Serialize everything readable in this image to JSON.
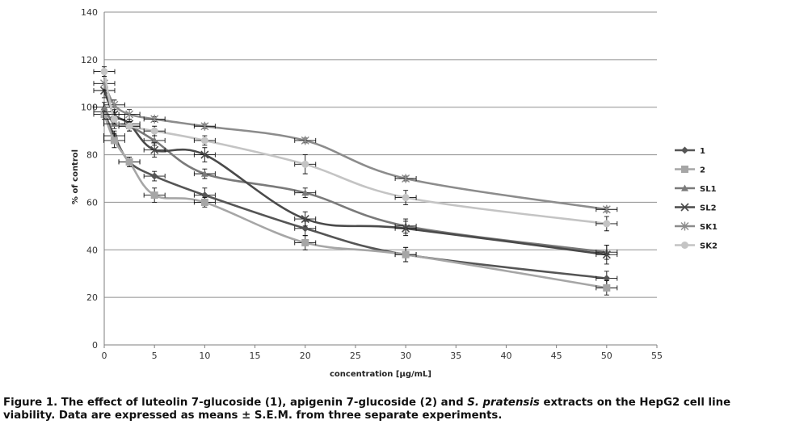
{
  "chart_data": {
    "type": "line",
    "xlabel": "concentration [µg/mL]",
    "ylabel": "% of control",
    "xlim": [
      0,
      55
    ],
    "ylim": [
      0,
      140
    ],
    "xticks": [
      0,
      5,
      10,
      15,
      20,
      25,
      30,
      35,
      40,
      45,
      50,
      55
    ],
    "yticks": [
      0,
      20,
      40,
      60,
      80,
      100,
      120,
      140
    ],
    "grid": "horizontal",
    "legend": "right",
    "series": [
      {
        "name": "1",
        "color": "#555555",
        "marker": "diamond",
        "x": [
          0,
          1,
          2.5,
          5,
          10,
          20,
          30,
          50
        ],
        "y": [
          98,
          88,
          77,
          71,
          63,
          49,
          38,
          28
        ],
        "err": [
          2,
          2,
          2,
          2,
          3,
          3,
          3,
          3
        ]
      },
      {
        "name": "2",
        "color": "#a6a6a6",
        "marker": "square",
        "x": [
          0,
          1,
          2.5,
          5,
          10,
          20,
          30,
          50
        ],
        "y": [
          97,
          86,
          77,
          63,
          60,
          43,
          38,
          24
        ],
        "err": [
          2,
          3,
          2,
          3,
          2,
          3,
          3,
          3
        ]
      },
      {
        "name": "SL1",
        "color": "#7a7a7a",
        "marker": "triangle",
        "x": [
          0,
          1,
          2.5,
          5,
          10,
          20,
          30,
          50
        ],
        "y": [
          100,
          93,
          92,
          86,
          72,
          64,
          50,
          39
        ],
        "err": [
          2,
          2,
          2,
          2,
          2,
          2,
          3,
          3
        ]
      },
      {
        "name": "SL2",
        "color": "#4a4a4a",
        "marker": "x",
        "x": [
          0,
          1,
          2.5,
          5,
          10,
          20,
          30,
          50
        ],
        "y": [
          107,
          97,
          93,
          82,
          80,
          53,
          49,
          38
        ],
        "err": [
          3,
          3,
          2,
          3,
          3,
          3,
          3,
          4
        ]
      },
      {
        "name": "SK1",
        "color": "#8c8c8c",
        "marker": "asterisk",
        "x": [
          0,
          1,
          2.5,
          5,
          10,
          20,
          30,
          50
        ],
        "y": [
          110,
          101,
          97,
          95,
          92,
          86,
          70,
          57
        ],
        "err": [
          3,
          2,
          2,
          1,
          1,
          1,
          1,
          1
        ]
      },
      {
        "name": "SK2",
        "color": "#c4c4c4",
        "marker": "circle",
        "x": [
          0,
          1,
          2.5,
          5,
          10,
          20,
          30,
          50
        ],
        "y": [
          115,
          95,
          92,
          90,
          86,
          76,
          62,
          51
        ],
        "err": [
          2,
          2,
          2,
          2,
          2,
          4,
          3,
          3
        ]
      }
    ]
  },
  "caption": {
    "part1": "Figure 1. The effect of luteolin 7-glucoside (1), apigenin 7-glucoside (2) and ",
    "species": "S. pratensis",
    "part2": " extracts on the HepG2 cell line viability. Data are expressed as means ± S.E.M. from three separate experiments."
  }
}
